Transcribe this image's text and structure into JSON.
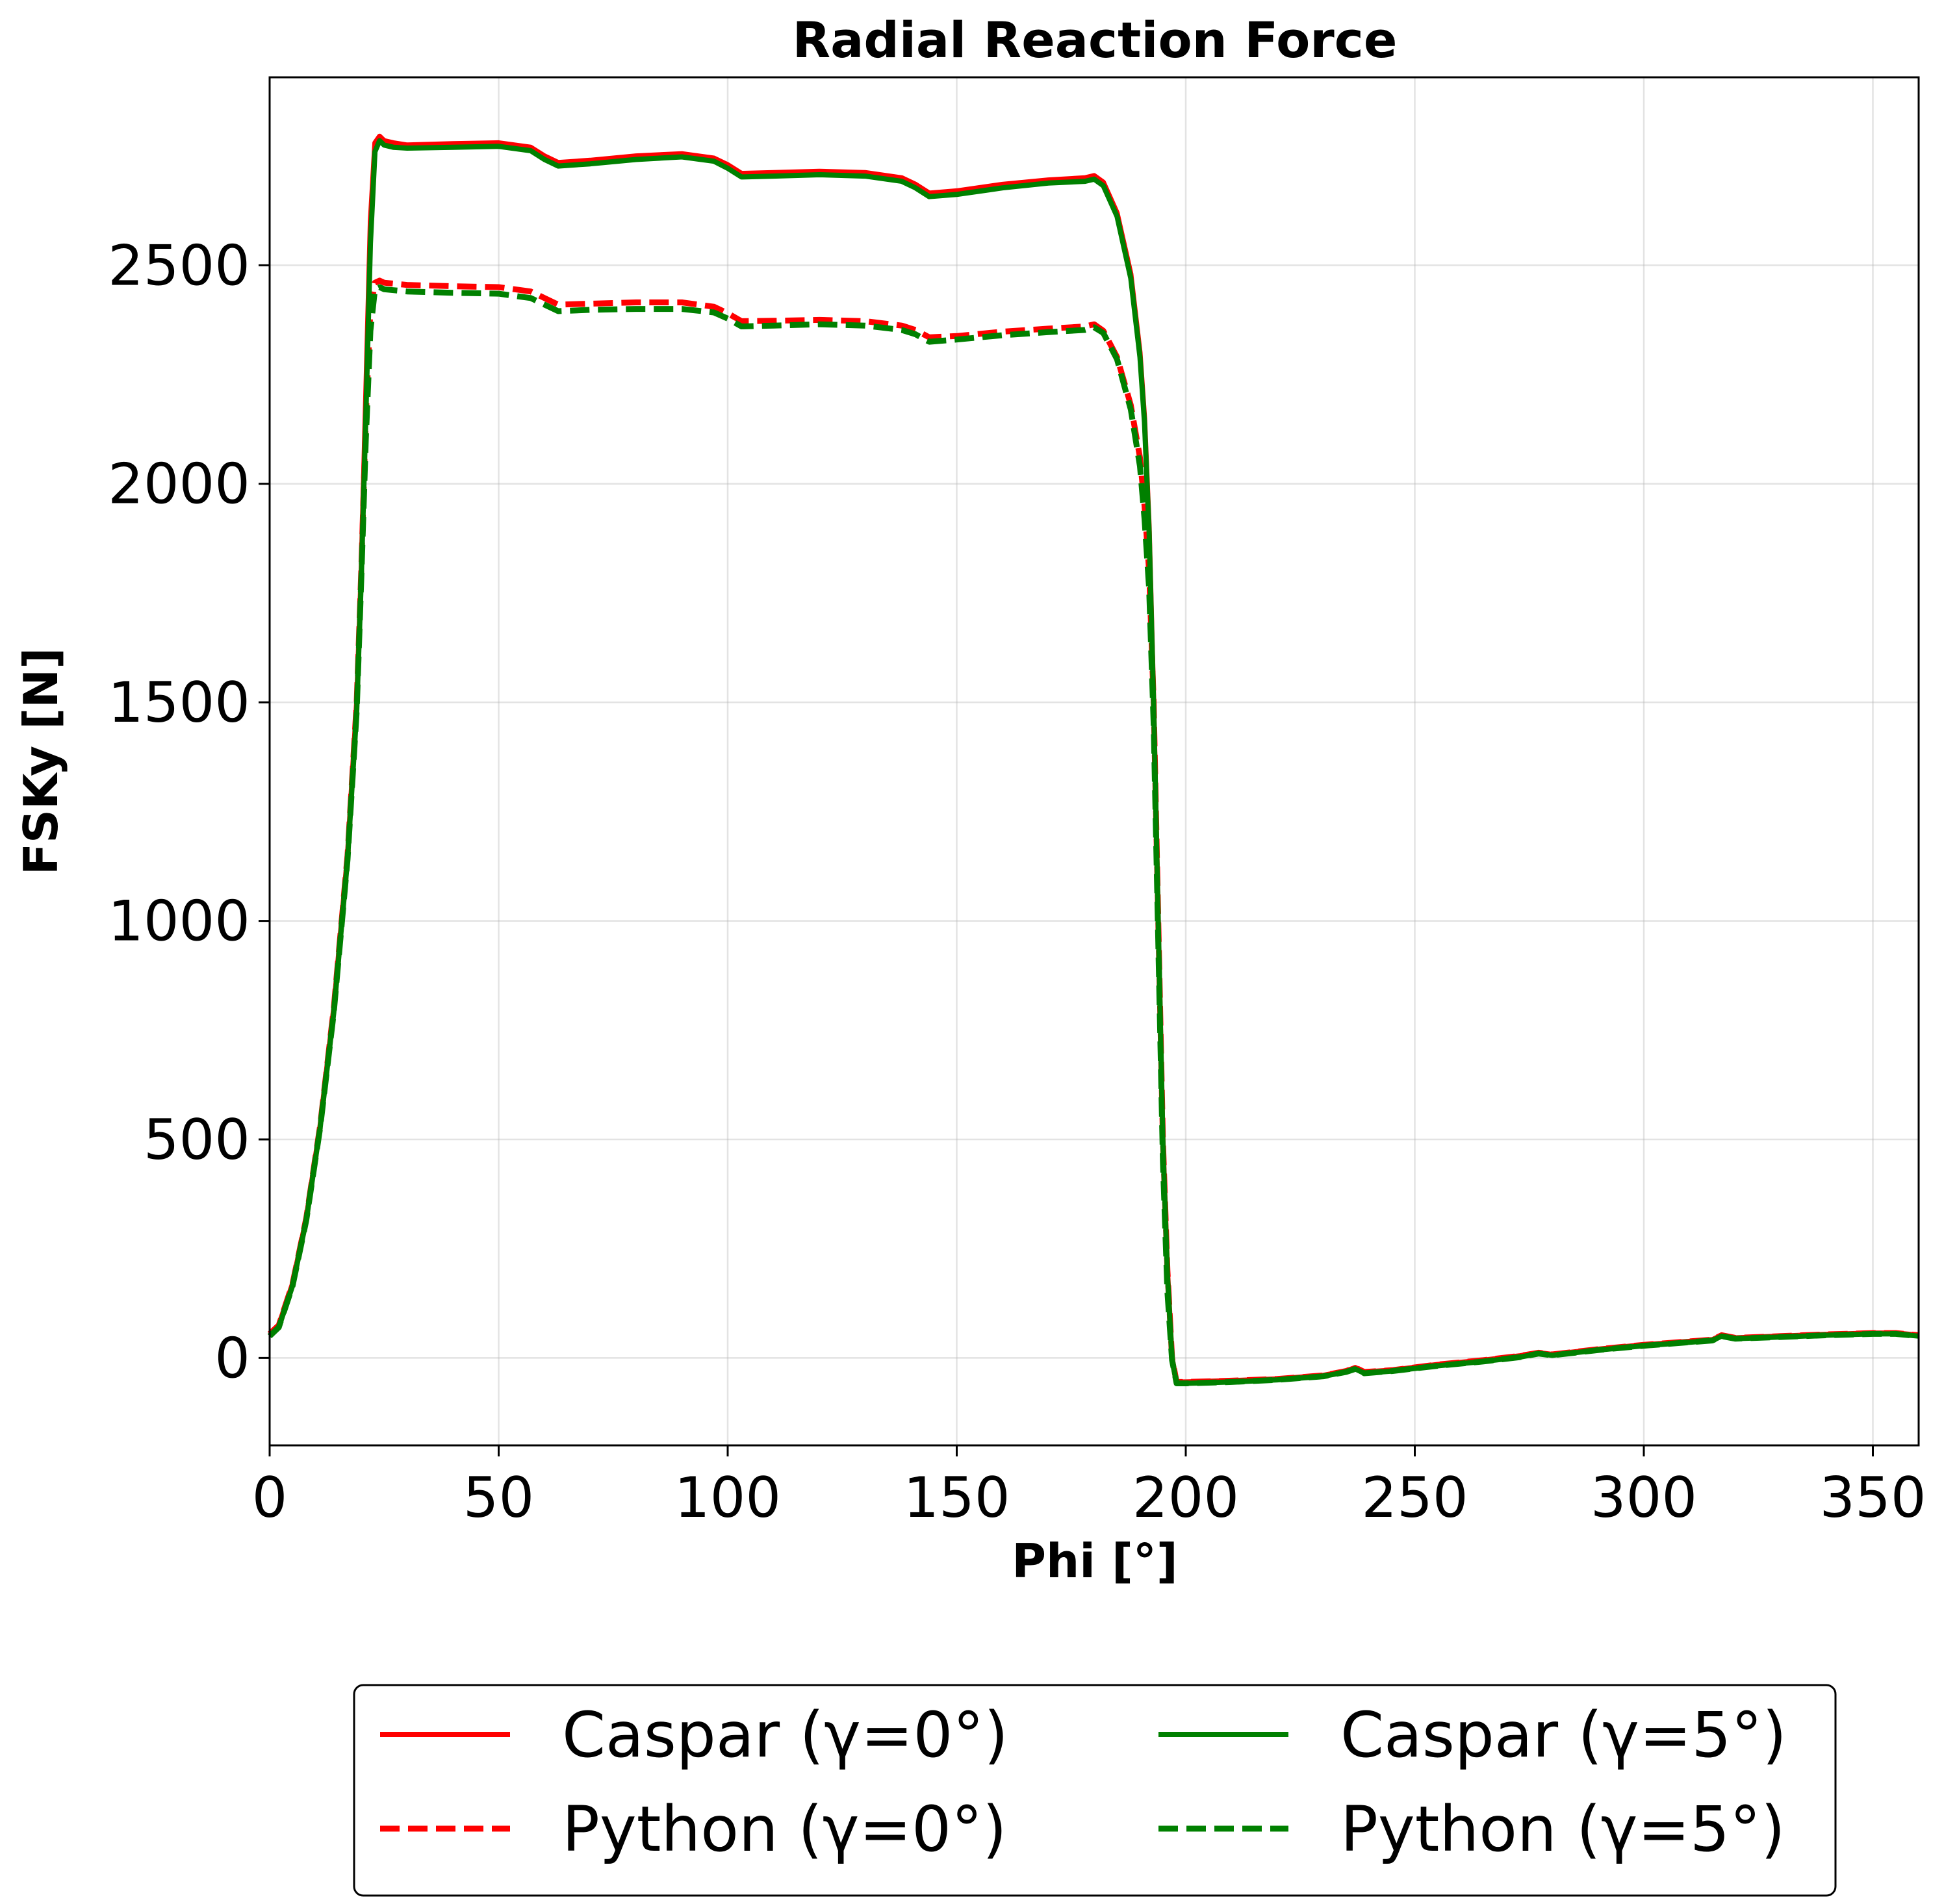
{
  "chart_data": {
    "type": "line",
    "title": "Radial Reaction Force",
    "xlabel": "Phi [°]",
    "ylabel": "FSKy [N]",
    "xlim": [
      0,
      360
    ],
    "ylim": [
      -200,
      2930
    ],
    "xticks": [
      0,
      50,
      100,
      150,
      200,
      250,
      300,
      350
    ],
    "yticks": [
      0,
      500,
      1000,
      1500,
      2000,
      2500
    ],
    "xtick_labels": [
      "0",
      "50",
      "100",
      "150",
      "200",
      "250",
      "300",
      "350"
    ],
    "ytick_labels": [
      "0",
      "500",
      "1000",
      "1500",
      "2000",
      "2500"
    ],
    "grid": true,
    "legend": {
      "position": "below",
      "columns": 2
    },
    "series": [
      {
        "name": "Caspar (γ=0°)",
        "color": "#ff0000",
        "style": "solid",
        "x": [
          0,
          2,
          5,
          8,
          11,
          14,
          17,
          19,
          20,
          21,
          22,
          23,
          24,
          25,
          27,
          30,
          40,
          50,
          57,
          60,
          63,
          70,
          80,
          90,
          97,
          100,
          103,
          110,
          120,
          130,
          138,
          141,
          144,
          150,
          160,
          170,
          178,
          180,
          182,
          185,
          188,
          190,
          191,
          192,
          193,
          194,
          195,
          196,
          197,
          198,
          200,
          210,
          220,
          230,
          235,
          237,
          239,
          245,
          255,
          265,
          273,
          277,
          280,
          290,
          300,
          310,
          315,
          317,
          320,
          330,
          340,
          350,
          355,
          360
        ],
        "y": [
          55,
          75,
          170,
          320,
          530,
          800,
          1150,
          1500,
          1800,
          2200,
          2600,
          2780,
          2795,
          2785,
          2780,
          2775,
          2778,
          2780,
          2770,
          2750,
          2735,
          2740,
          2750,
          2755,
          2745,
          2730,
          2710,
          2712,
          2715,
          2712,
          2700,
          2685,
          2665,
          2670,
          2685,
          2695,
          2700,
          2705,
          2690,
          2620,
          2480,
          2300,
          2150,
          1900,
          1500,
          1000,
          500,
          200,
          0,
          -55,
          -55,
          -52,
          -48,
          -40,
          -30,
          -22,
          -32,
          -28,
          -15,
          -5,
          5,
          12,
          8,
          20,
          30,
          38,
          42,
          52,
          46,
          50,
          54,
          57,
          57,
          52
        ]
      },
      {
        "name": "Python (γ=0°)",
        "color": "#ff0000",
        "style": "dashed",
        "x": [
          0,
          2,
          5,
          8,
          11,
          14,
          17,
          19,
          20,
          21,
          22,
          23,
          24,
          25,
          27,
          30,
          40,
          50,
          57,
          60,
          63,
          70,
          80,
          90,
          97,
          100,
          103,
          110,
          120,
          130,
          138,
          141,
          144,
          150,
          160,
          170,
          178,
          180,
          182,
          185,
          188,
          190,
          191,
          192,
          193,
          194,
          195,
          196,
          197,
          198,
          200,
          210,
          220,
          230,
          235,
          237,
          239,
          245,
          255,
          265,
          273,
          277,
          280,
          290,
          300,
          310,
          315,
          317,
          320,
          330,
          340,
          350,
          355,
          360
        ],
        "y": [
          55,
          75,
          170,
          320,
          530,
          800,
          1150,
          1500,
          1800,
          2150,
          2400,
          2460,
          2465,
          2460,
          2458,
          2455,
          2452,
          2450,
          2440,
          2425,
          2410,
          2412,
          2415,
          2415,
          2405,
          2390,
          2372,
          2373,
          2375,
          2372,
          2362,
          2352,
          2335,
          2338,
          2348,
          2355,
          2360,
          2365,
          2350,
          2290,
          2180,
          2060,
          1950,
          1800,
          1500,
          1000,
          500,
          200,
          0,
          -55,
          -55,
          -52,
          -48,
          -40,
          -30,
          -22,
          -32,
          -28,
          -15,
          -5,
          5,
          12,
          8,
          20,
          30,
          38,
          42,
          52,
          46,
          50,
          54,
          57,
          57,
          52
        ]
      },
      {
        "name": "Caspar (γ=5°)",
        "color": "#008000",
        "style": "solid",
        "x": [
          0,
          2,
          5,
          8,
          11,
          14,
          17,
          19,
          20,
          21,
          22,
          23,
          24,
          25,
          27,
          30,
          40,
          50,
          57,
          60,
          63,
          70,
          80,
          90,
          97,
          100,
          103,
          110,
          120,
          130,
          138,
          141,
          144,
          150,
          160,
          170,
          178,
          180,
          182,
          185,
          188,
          190,
          191,
          192,
          193,
          194,
          195,
          196,
          197,
          198,
          200,
          210,
          220,
          230,
          235,
          237,
          239,
          245,
          255,
          265,
          273,
          277,
          280,
          290,
          300,
          310,
          315,
          317,
          320,
          330,
          340,
          350,
          355,
          360
        ],
        "y": [
          50,
          70,
          165,
          315,
          525,
          790,
          1140,
          1480,
          1780,
          2150,
          2550,
          2760,
          2785,
          2775,
          2770,
          2768,
          2770,
          2772,
          2762,
          2742,
          2727,
          2732,
          2742,
          2748,
          2738,
          2722,
          2702,
          2704,
          2707,
          2704,
          2692,
          2677,
          2657,
          2662,
          2677,
          2688,
          2692,
          2697,
          2682,
          2612,
          2470,
          2290,
          2140,
          1890,
          1490,
          990,
          490,
          190,
          -5,
          -58,
          -58,
          -55,
          -50,
          -42,
          -32,
          -25,
          -35,
          -30,
          -18,
          -8,
          2,
          10,
          6,
          18,
          28,
          36,
          40,
          50,
          44,
          48,
          52,
          55,
          55,
          50
        ]
      },
      {
        "name": "Python (γ=5°)",
        "color": "#008000",
        "style": "dashed",
        "x": [
          0,
          2,
          5,
          8,
          11,
          14,
          17,
          19,
          20,
          21,
          22,
          23,
          24,
          25,
          27,
          30,
          40,
          50,
          57,
          60,
          63,
          70,
          80,
          90,
          97,
          100,
          103,
          110,
          120,
          130,
          138,
          141,
          144,
          150,
          160,
          170,
          178,
          180,
          182,
          185,
          188,
          190,
          191,
          192,
          193,
          194,
          195,
          196,
          197,
          198,
          200,
          210,
          220,
          230,
          235,
          237,
          239,
          245,
          255,
          265,
          273,
          277,
          280,
          290,
          300,
          310,
          315,
          317,
          320,
          330,
          340,
          350,
          355,
          360
        ],
        "y": [
          50,
          70,
          165,
          315,
          525,
          790,
          1140,
          1480,
          1780,
          2100,
          2350,
          2445,
          2450,
          2445,
          2443,
          2440,
          2437,
          2435,
          2425,
          2410,
          2395,
          2398,
          2400,
          2400,
          2392,
          2378,
          2360,
          2362,
          2365,
          2362,
          2352,
          2342,
          2325,
          2330,
          2340,
          2347,
          2352,
          2358,
          2345,
          2285,
          2170,
          2040,
          1920,
          1760,
          1450,
          950,
          450,
          150,
          -5,
          -58,
          -58,
          -55,
          -50,
          -42,
          -32,
          -25,
          -35,
          -30,
          -18,
          -8,
          2,
          10,
          6,
          18,
          28,
          36,
          40,
          50,
          44,
          48,
          52,
          55,
          55,
          50
        ]
      }
    ]
  }
}
